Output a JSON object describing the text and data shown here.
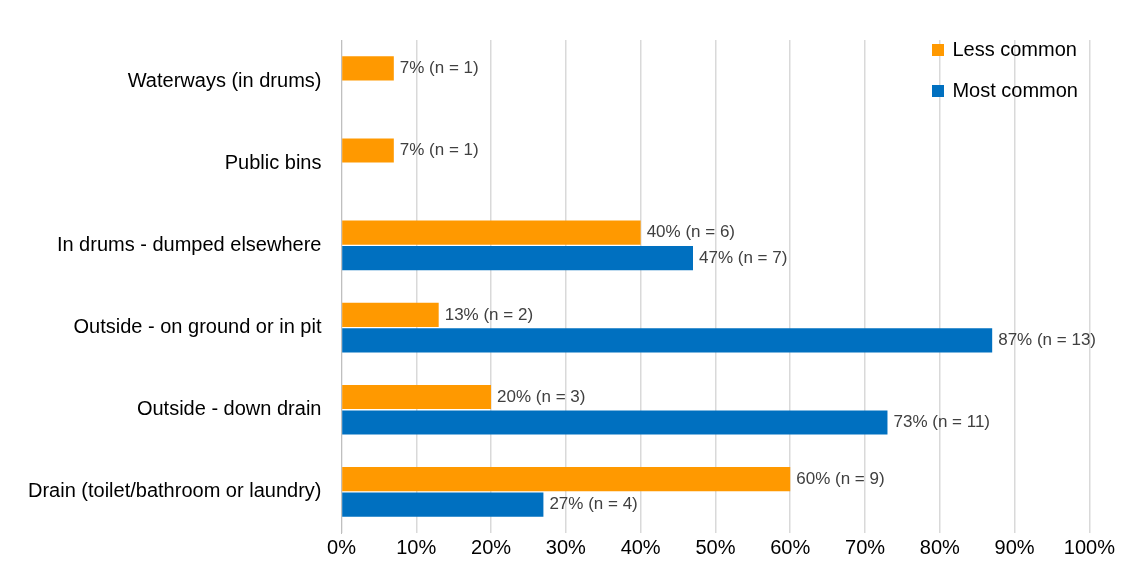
{
  "chart_data": {
    "type": "bar",
    "orientation": "horizontal",
    "categories": [
      "Waterways (in drums)",
      "Public bins",
      "In drums - dumped elsewhere",
      "Outside - on ground or in pit",
      "Outside - down drain",
      "Drain (toilet/bathroom or laundry)"
    ],
    "series": [
      {
        "name": "Less common",
        "color": "#ff9900",
        "values": [
          7,
          7,
          40,
          13,
          20,
          60
        ],
        "value_labels": [
          "7% (n = 1)",
          "7% (n = 1)",
          "40% (n = 6)",
          "13% (n = 2)",
          "20% (n = 3)",
          "60% (n = 9)"
        ]
      },
      {
        "name": "Most common",
        "color": "#0070c0",
        "values": [
          null,
          null,
          47,
          87,
          73,
          27
        ],
        "value_labels": [
          null,
          null,
          "47% (n = 7)",
          "87% (n = 13)",
          "73% (n = 11)",
          "27% (n = 4)"
        ]
      }
    ],
    "xlim": [
      0,
      100
    ],
    "xticks": [
      {
        "value": 0,
        "label": "0%"
      },
      {
        "value": 10,
        "label": "10%"
      },
      {
        "value": 20,
        "label": "20%"
      },
      {
        "value": 30,
        "label": "30%"
      },
      {
        "value": 40,
        "label": "40%"
      },
      {
        "value": 50,
        "label": "50%"
      },
      {
        "value": 60,
        "label": "60%"
      },
      {
        "value": 70,
        "label": "70%"
      },
      {
        "value": 80,
        "label": "80%"
      },
      {
        "value": 90,
        "label": "90%"
      },
      {
        "value": 100,
        "label": "100%"
      }
    ],
    "grid": "x",
    "legend": "top right"
  }
}
